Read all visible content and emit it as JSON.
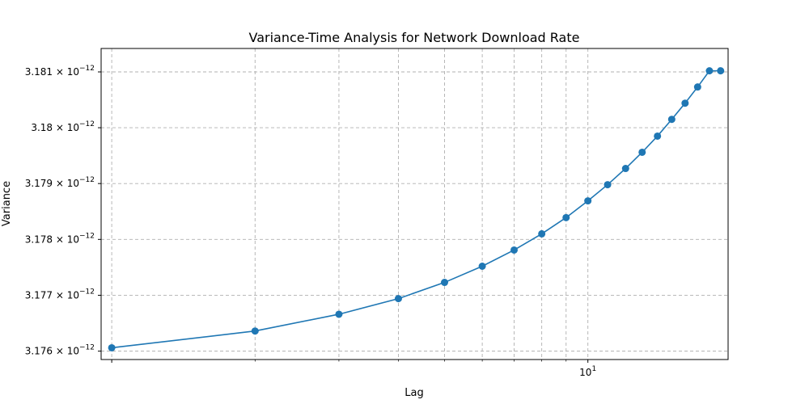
{
  "chart_data": {
    "type": "line",
    "title": "Variance-Time Analysis for Network Download Rate",
    "xlabel": "Lag",
    "ylabel": "Variance",
    "xscale": "log",
    "yscale": "log",
    "grid": true,
    "grid_style": "dashed",
    "xlim": [
      0.95,
      19.7
    ],
    "ylim": [
      3.17585e-12,
      3.18142e-12
    ],
    "x_major_ticks": [
      {
        "value": 10,
        "label": "10",
        "exponent": "1"
      }
    ],
    "y_ticks": [
      {
        "value": 3.176e-12,
        "mantissa": "3.176",
        "exponent": "−12"
      },
      {
        "value": 3.177e-12,
        "mantissa": "3.177",
        "exponent": "−12"
      },
      {
        "value": 3.178e-12,
        "mantissa": "3.178",
        "exponent": "−12"
      },
      {
        "value": 3.179e-12,
        "mantissa": "3.179",
        "exponent": "−12"
      },
      {
        "value": 3.18e-12,
        "mantissa": "3.18",
        "exponent": "−12"
      },
      {
        "value": 3.181e-12,
        "mantissa": "3.181",
        "exponent": "−12"
      }
    ],
    "series": [
      {
        "color": "#1f77b4",
        "marker": "circle",
        "x": [
          1,
          2,
          3,
          4,
          5,
          6,
          7,
          8,
          9,
          10,
          11,
          12,
          13,
          14,
          15,
          16,
          17,
          18,
          19
        ],
        "y": [
          3.17606e-12,
          3.17636e-12,
          3.17666e-12,
          3.17694e-12,
          3.17723e-12,
          3.17752e-12,
          3.17781e-12,
          3.1781e-12,
          3.17839e-12,
          3.17869e-12,
          3.17898e-12,
          3.17927e-12,
          3.17956e-12,
          3.17985e-12,
          3.18015e-12,
          3.18044e-12,
          3.18073e-12,
          3.18102e-12,
          3.18102e-12
        ]
      }
    ]
  }
}
